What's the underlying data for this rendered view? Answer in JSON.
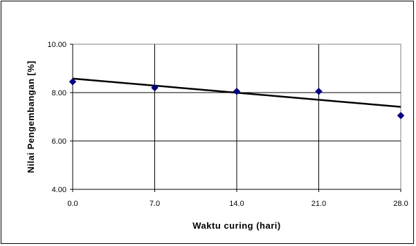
{
  "chart_data": {
    "type": "scatter",
    "title": "",
    "xlabel": "Waktu curing (hari)",
    "ylabel": "Nilai Pengembangan [%]",
    "x_ticks": [
      "0.0",
      "7.0",
      "14.0",
      "21.0",
      "28.0"
    ],
    "y_ticks": [
      "10.00",
      "8.00",
      "6.00",
      "4.00"
    ],
    "xlim": [
      0,
      28
    ],
    "ylim": [
      4,
      10
    ],
    "grid": true,
    "series": [
      {
        "x": [
          0,
          7,
          14,
          21,
          28
        ],
        "y": [
          8.45,
          8.2,
          8.05,
          8.05,
          7.05
        ],
        "marker": "diamond",
        "color": "#000080"
      }
    ],
    "trendline": {
      "type": "linear",
      "x": [
        0,
        28
      ],
      "y": [
        8.58,
        7.41
      ],
      "color": "#000000"
    }
  }
}
